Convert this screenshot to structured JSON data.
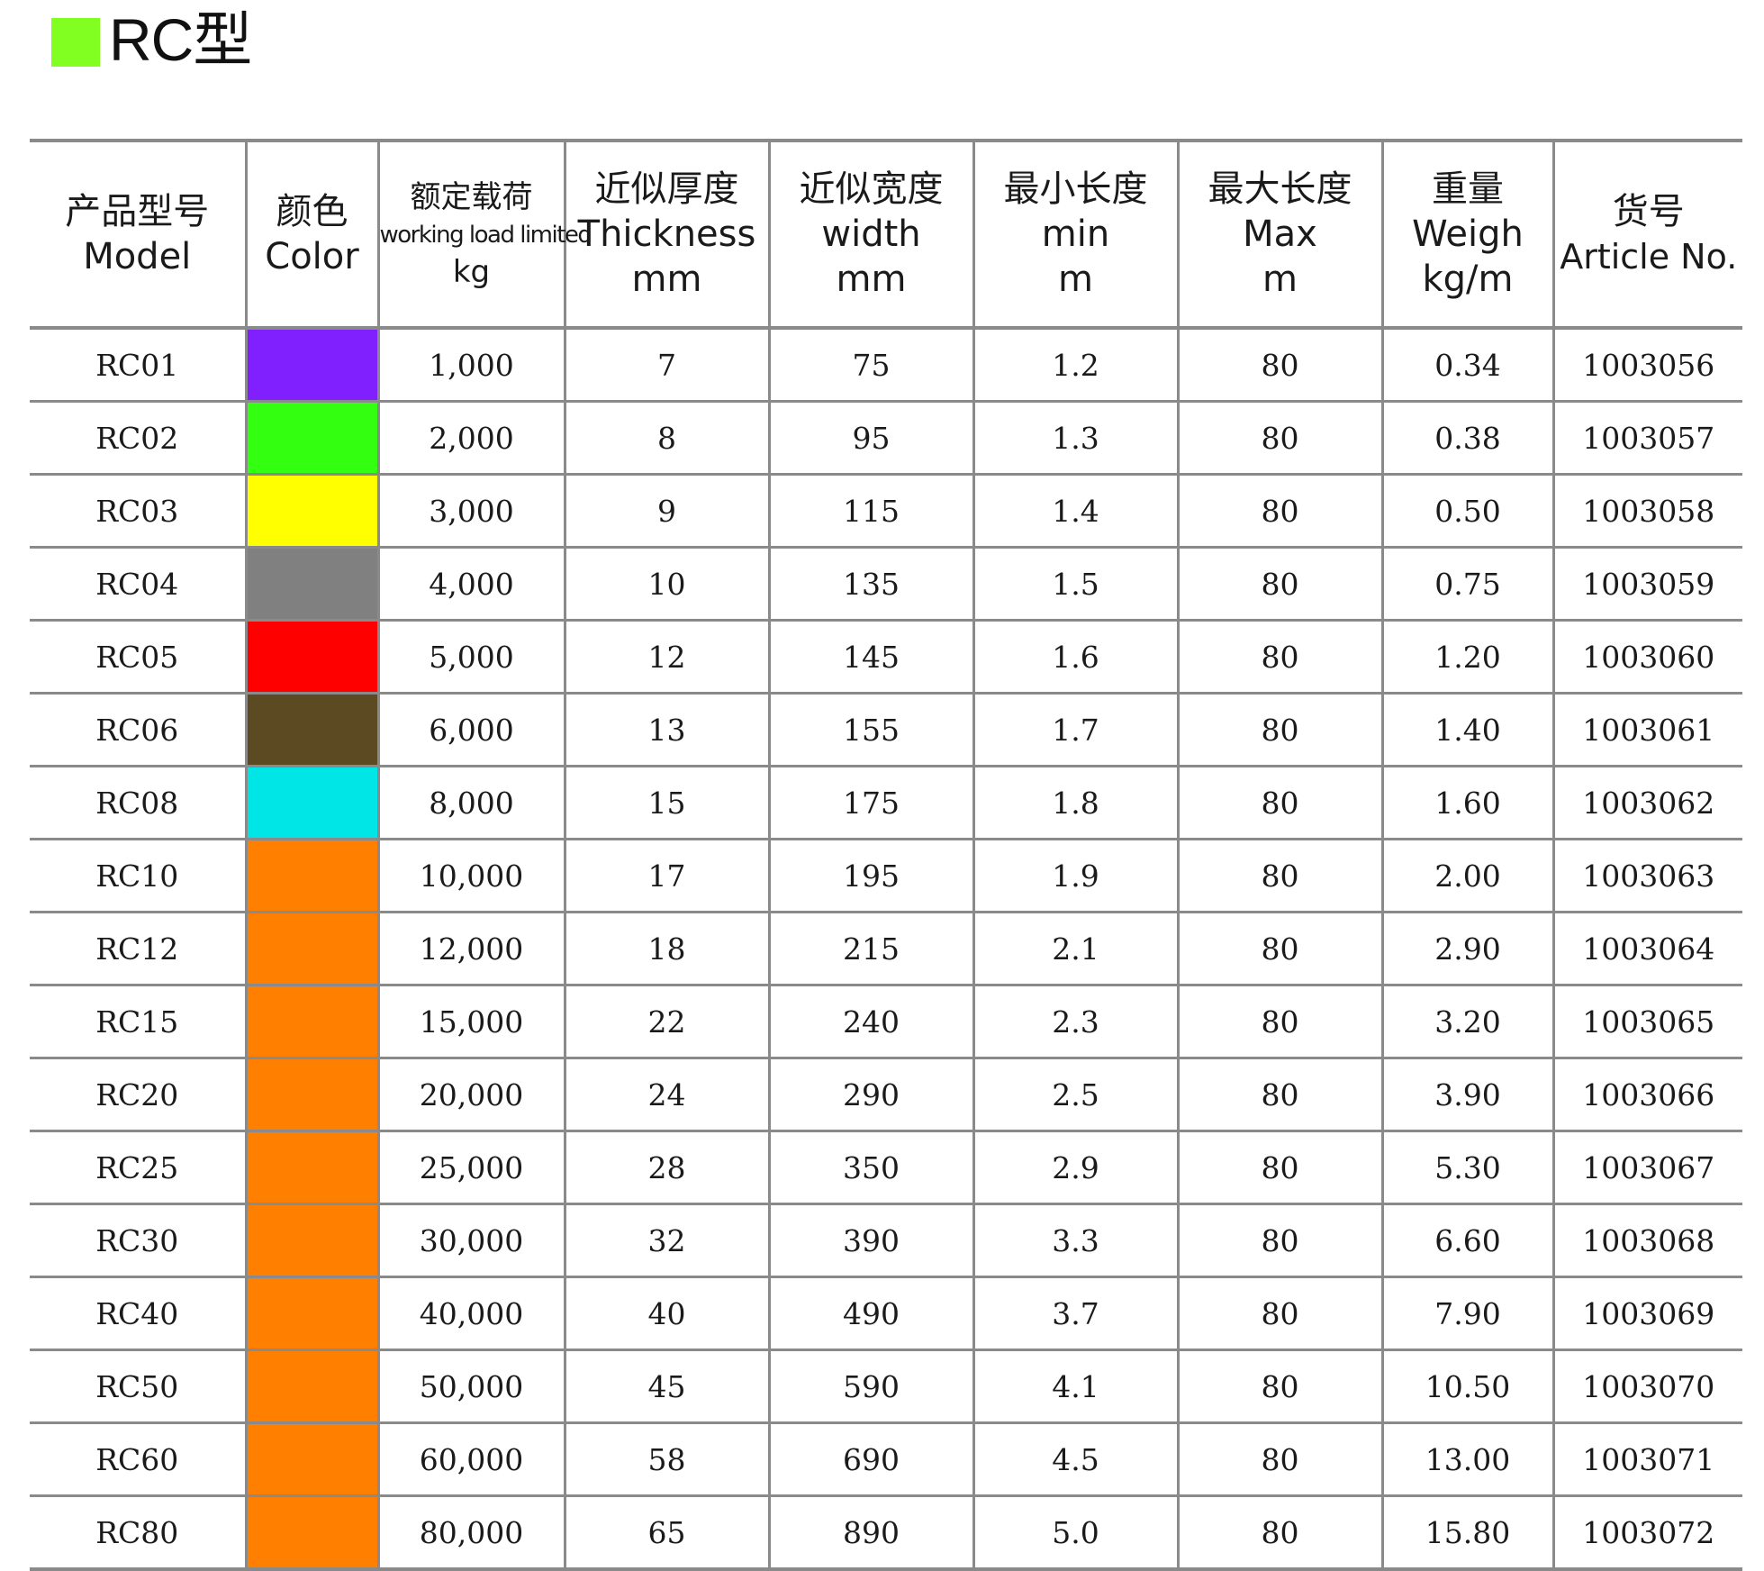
{
  "title": {
    "text": "RC型",
    "swatch_color": "#80ff20"
  },
  "columns": [
    {
      "lines": [
        "产品型号",
        "Model"
      ]
    },
    {
      "lines": [
        "颜色",
        "Color"
      ]
    },
    {
      "lines": [
        "额定载荷",
        "working load limited",
        "kg"
      ]
    },
    {
      "lines": [
        "近似厚度",
        "Thickness",
        "mm"
      ]
    },
    {
      "lines": [
        "近似宽度",
        "width",
        "mm"
      ]
    },
    {
      "lines": [
        "最小长度",
        "min",
        "m"
      ]
    },
    {
      "lines": [
        "最大长度",
        "Max",
        "m"
      ]
    },
    {
      "lines": [
        "重量",
        "Weigh",
        "kg/m"
      ]
    },
    {
      "lines": [
        "货号",
        "Article No."
      ]
    }
  ],
  "rows": [
    {
      "model": "RC01",
      "color": "#8020ff",
      "load": "1,000",
      "thickness": "7",
      "width": "75",
      "min": "1.2",
      "max": "80",
      "weight": "0.34",
      "article": "1003056"
    },
    {
      "model": "RC02",
      "color": "#33ff11",
      "load": "2,000",
      "thickness": "8",
      "width": "95",
      "min": "1.3",
      "max": "80",
      "weight": "0.38",
      "article": "1003057"
    },
    {
      "model": "RC03",
      "color": "#ffff00",
      "load": "3,000",
      "thickness": "9",
      "width": "115",
      "min": "1.4",
      "max": "80",
      "weight": "0.50",
      "article": "1003058"
    },
    {
      "model": "RC04",
      "color": "#808080",
      "load": "4,000",
      "thickness": "10",
      "width": "135",
      "min": "1.5",
      "max": "80",
      "weight": "0.75",
      "article": "1003059"
    },
    {
      "model": "RC05",
      "color": "#ff0000",
      "load": "5,000",
      "thickness": "12",
      "width": "145",
      "min": "1.6",
      "max": "80",
      "weight": "1.20",
      "article": "1003060"
    },
    {
      "model": "RC06",
      "color": "#5c4a22",
      "load": "6,000",
      "thickness": "13",
      "width": "155",
      "min": "1.7",
      "max": "80",
      "weight": "1.40",
      "article": "1003061"
    },
    {
      "model": "RC08",
      "color": "#00e5e5",
      "load": "8,000",
      "thickness": "15",
      "width": "175",
      "min": "1.8",
      "max": "80",
      "weight": "1.60",
      "article": "1003062"
    },
    {
      "model": "RC10",
      "color": "#ff8000",
      "load": "10,000",
      "thickness": "17",
      "width": "195",
      "min": "1.9",
      "max": "80",
      "weight": "2.00",
      "article": "1003063"
    },
    {
      "model": "RC12",
      "color": "#ff8000",
      "load": "12,000",
      "thickness": "18",
      "width": "215",
      "min": "2.1",
      "max": "80",
      "weight": "2.90",
      "article": "1003064"
    },
    {
      "model": "RC15",
      "color": "#ff8000",
      "load": "15,000",
      "thickness": "22",
      "width": "240",
      "min": "2.3",
      "max": "80",
      "weight": "3.20",
      "article": "1003065"
    },
    {
      "model": "RC20",
      "color": "#ff8000",
      "load": "20,000",
      "thickness": "24",
      "width": "290",
      "min": "2.5",
      "max": "80",
      "weight": "3.90",
      "article": "1003066"
    },
    {
      "model": "RC25",
      "color": "#ff8000",
      "load": "25,000",
      "thickness": "28",
      "width": "350",
      "min": "2.9",
      "max": "80",
      "weight": "5.30",
      "article": "1003067"
    },
    {
      "model": "RC30",
      "color": "#ff8000",
      "load": "30,000",
      "thickness": "32",
      "width": "390",
      "min": "3.3",
      "max": "80",
      "weight": "6.60",
      "article": "1003068"
    },
    {
      "model": "RC40",
      "color": "#ff8000",
      "load": "40,000",
      "thickness": "40",
      "width": "490",
      "min": "3.7",
      "max": "80",
      "weight": "7.90",
      "article": "1003069"
    },
    {
      "model": "RC50",
      "color": "#ff8000",
      "load": "50,000",
      "thickness": "45",
      "width": "590",
      "min": "4.1",
      "max": "80",
      "weight": "10.50",
      "article": "1003070"
    },
    {
      "model": "RC60",
      "color": "#ff8000",
      "load": "60,000",
      "thickness": "58",
      "width": "690",
      "min": "4.5",
      "max": "80",
      "weight": "13.00",
      "article": "1003071"
    },
    {
      "model": "RC80",
      "color": "#ff8000",
      "load": "80,000",
      "thickness": "65",
      "width": "890",
      "min": "5.0",
      "max": "80",
      "weight": "15.80",
      "article": "1003072"
    }
  ]
}
